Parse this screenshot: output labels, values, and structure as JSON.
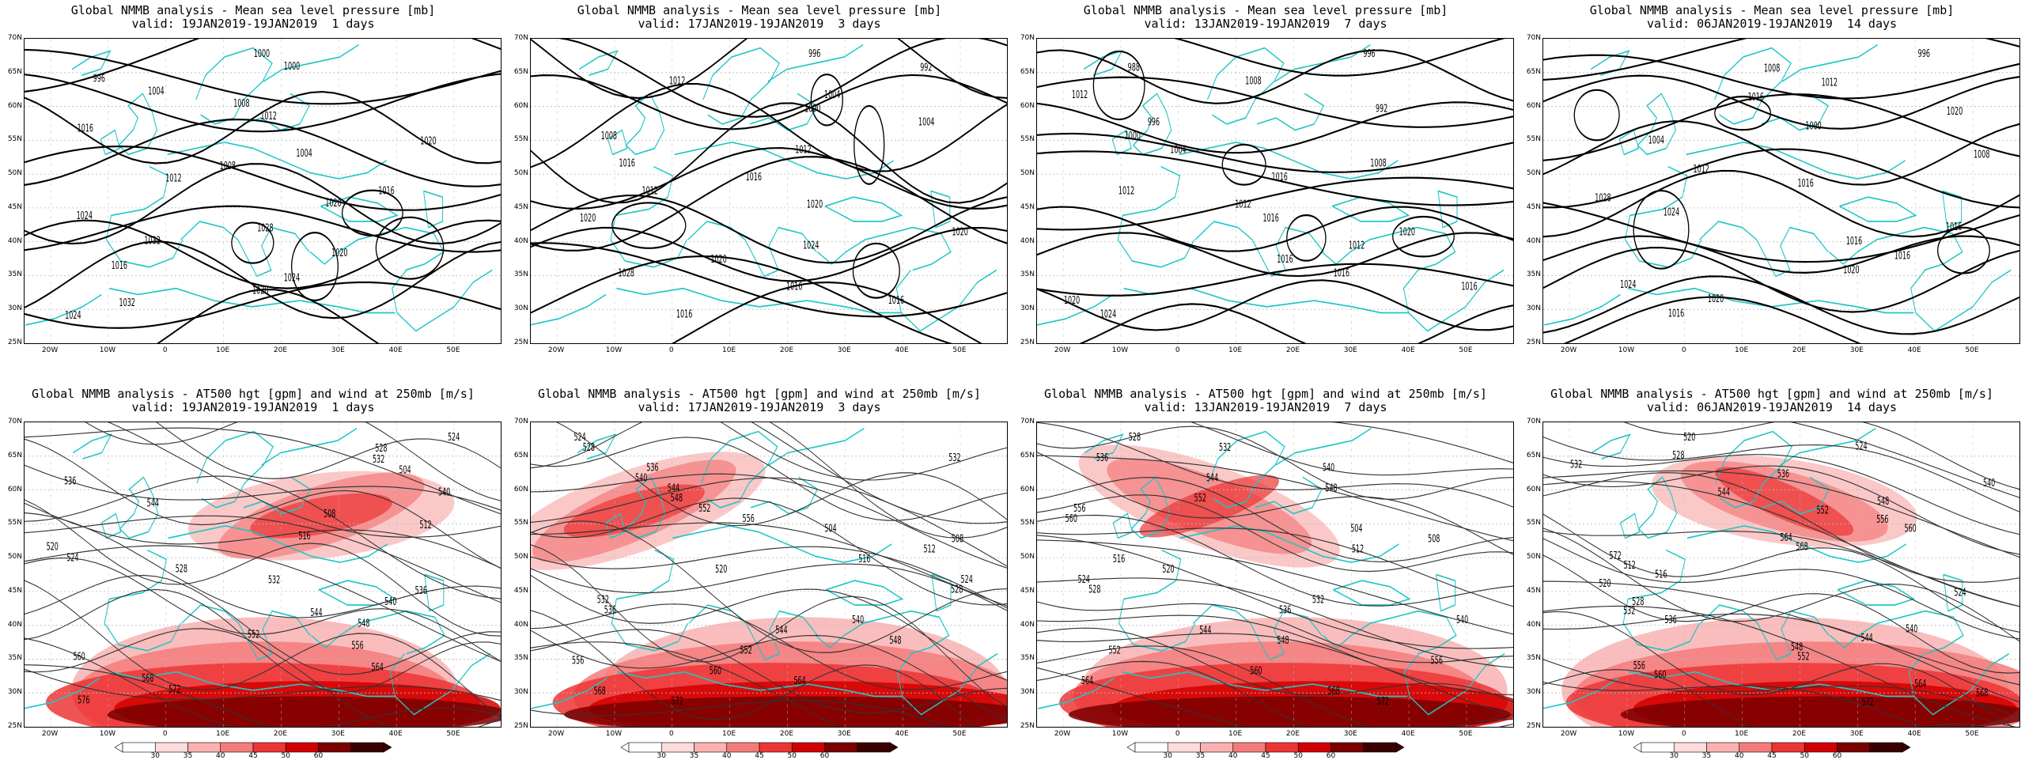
{
  "panels": [
    {
      "title1": "Global NMMB analysis - Mean sea level pressure [mb]",
      "title2": "valid: 19JAN2019-19JAN2019  1 days",
      "type": "mslp",
      "contour_labels": [
        "1000",
        "1000",
        "996",
        "1004",
        "1008",
        "1012",
        "1016",
        "1020",
        "1004",
        "1008",
        "1012",
        "1016",
        "1020",
        "1024",
        "1028",
        "1032",
        "1020",
        "1016",
        "1024",
        "1028",
        "1032",
        "1024"
      ]
    },
    {
      "title1": "Global NMMB analysis - Mean sea level pressure [mb]",
      "title2": "valid: 17JAN2019-19JAN2019  3 days",
      "type": "mslp",
      "contour_labels": [
        "996",
        "992",
        "1012",
        "1004",
        "1000",
        "1004",
        "1008",
        "1012",
        "1016",
        "1016",
        "1012",
        "1020",
        "1020",
        "1020",
        "1024",
        "1020",
        "1028",
        "1016",
        "1016",
        "1016"
      ]
    },
    {
      "title1": "Global NMMB analysis - Mean sea level pressure [mb]",
      "title2": "valid: 13JAN2019-19JAN2019  7 days",
      "type": "mslp",
      "contour_labels": [
        "996",
        "988",
        "1008",
        "1012",
        "992",
        "996",
        "1000",
        "1004",
        "1008",
        "1016",
        "1012",
        "1012",
        "1016",
        "1020",
        "1012",
        "1016",
        "1016",
        "1016",
        "1020",
        "1024"
      ]
    },
    {
      "title1": "Global NMMB analysis - Mean sea level pressure [mb]",
      "title2": "valid: 06JAN2019-19JAN2019  14 days",
      "type": "mslp",
      "contour_labels": [
        "996",
        "1008",
        "1012",
        "1016",
        "1020",
        "1000",
        "1004",
        "1008",
        "1012",
        "1016",
        "1028",
        "1024",
        "1016",
        "1016",
        "1016",
        "1020",
        "1024",
        "1020",
        "1016"
      ]
    },
    {
      "title1": "Global NMMB analysis - AT500 hgt [gpm] and wind at 250mb [m/s]",
      "title2": "valid: 19JAN2019-19JAN2019  1 days",
      "type": "z500",
      "contour_labels": [
        "524",
        "528",
        "532",
        "504",
        "536",
        "540",
        "544",
        "508",
        "512",
        "516",
        "520",
        "524",
        "528",
        "532",
        "536",
        "540",
        "544",
        "548",
        "552",
        "556",
        "560",
        "564",
        "568",
        "572",
        "576"
      ]
    },
    {
      "title1": "Global NMMB analysis - AT500 hgt [gpm] and wind at 250mb [m/s]",
      "title2": "valid: 17JAN2019-19JAN2019  3 days",
      "type": "z500",
      "contour_labels": [
        "524",
        "528",
        "532",
        "536",
        "540",
        "544",
        "548",
        "552",
        "556",
        "504",
        "508",
        "512",
        "516",
        "520",
        "524",
        "528",
        "532",
        "536",
        "540",
        "544",
        "548",
        "552",
        "556",
        "560",
        "564",
        "568",
        "572"
      ]
    },
    {
      "title1": "Global NMMB analysis - AT500 hgt [gpm] and wind at 250mb [m/s]",
      "title2": "valid: 13JAN2019-19JAN2019  7 days",
      "type": "z500",
      "contour_labels": [
        "528",
        "532",
        "536",
        "540",
        "544",
        "548",
        "552",
        "556",
        "560",
        "504",
        "508",
        "512",
        "516",
        "520",
        "524",
        "528",
        "532",
        "536",
        "540",
        "544",
        "548",
        "552",
        "556",
        "560",
        "564",
        "568",
        "572"
      ]
    },
    {
      "title1": "Global NMMB analysis - AT500 hgt [gpm] and wind at 250mb [m/s]",
      "title2": "valid: 06JAN2019-19JAN2019  14 days",
      "type": "z500",
      "contour_labels": [
        "520",
        "524",
        "528",
        "532",
        "536",
        "540",
        "544",
        "548",
        "552",
        "556",
        "560",
        "564",
        "568",
        "572",
        "512",
        "516",
        "520",
        "524",
        "528",
        "532",
        "536",
        "540",
        "544",
        "548",
        "552",
        "556",
        "560",
        "564",
        "568",
        "572"
      ]
    }
  ],
  "lat_labels": [
    "70N",
    "65N",
    "60N",
    "55N",
    "50N",
    "45N",
    "40N",
    "35N",
    "30N",
    "25N"
  ],
  "lon_labels": [
    "20W",
    "10W",
    "0",
    "10E",
    "20E",
    "30E",
    "40E",
    "50E"
  ],
  "colorbar": {
    "values": [
      "30",
      "35",
      "40",
      "45",
      "50",
      "60"
    ],
    "colors": [
      "#ffffff",
      "#fcdcdc",
      "#f9b1b1",
      "#f47b7b",
      "#ed3535",
      "#d20000",
      "#7a0000",
      "#3a0000"
    ]
  },
  "colors": {
    "coast": "#20c5c5",
    "contour_mslp": "#000000",
    "contour_z500": "#333333",
    "grid": "#bbbbbb"
  }
}
